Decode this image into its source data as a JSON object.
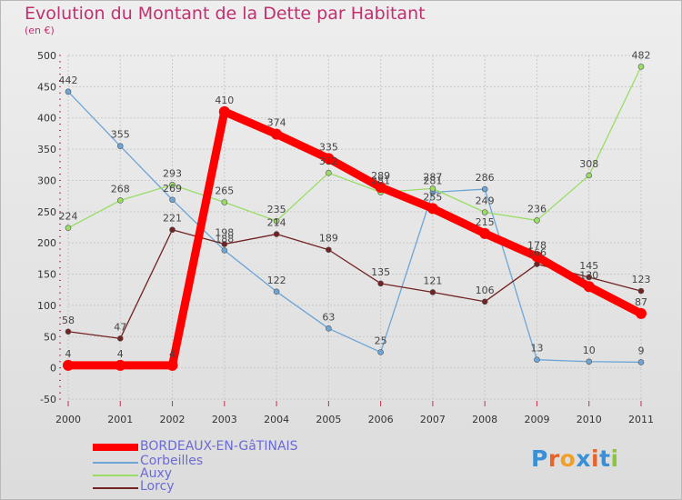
{
  "title": "Evolution du Montant de la Dette par Habitant",
  "subtitle": "(en €)",
  "logo": {
    "letters": [
      "P",
      "r",
      "o",
      "x",
      "i",
      "t",
      "i"
    ],
    "colors": [
      "#3a8fd6",
      "#e8642b",
      "#f0a028",
      "#3a8fd6",
      "#e8642b",
      "#3a8fd6",
      "#8cc63f"
    ]
  },
  "chart_data": {
    "type": "line",
    "x": [
      "2000",
      "2001",
      "2002",
      "2003",
      "2004",
      "2005",
      "2006",
      "2007",
      "2008",
      "2009",
      "2010",
      "2011"
    ],
    "ylim": [
      -50,
      500
    ],
    "yticks": [
      -50,
      0,
      50,
      100,
      150,
      200,
      250,
      300,
      350,
      400,
      450,
      500
    ],
    "grid": true,
    "legend_position": "bottom-left",
    "series": [
      {
        "name": "BORDEAUX-EN-GâTINAIS",
        "color": "#ff0000",
        "values": [
          4,
          4,
          4,
          410,
          374,
          335,
          289,
          255,
          215,
          178,
          130,
          87
        ]
      },
      {
        "name": "Corbeilles",
        "color": "#6da5d6",
        "values": [
          442,
          355,
          269,
          188,
          122,
          63,
          25,
          281,
          286,
          13,
          10,
          9
        ]
      },
      {
        "name": "Auxy",
        "color": "#99dd66",
        "values": [
          224,
          268,
          293,
          265,
          235,
          312,
          281,
          287,
          249,
          236,
          308,
          482
        ]
      },
      {
        "name": "Lorcy",
        "color": "#722222",
        "values": [
          58,
          47,
          221,
          198,
          214,
          189,
          135,
          121,
          106,
          166,
          145,
          123
        ]
      }
    ]
  }
}
